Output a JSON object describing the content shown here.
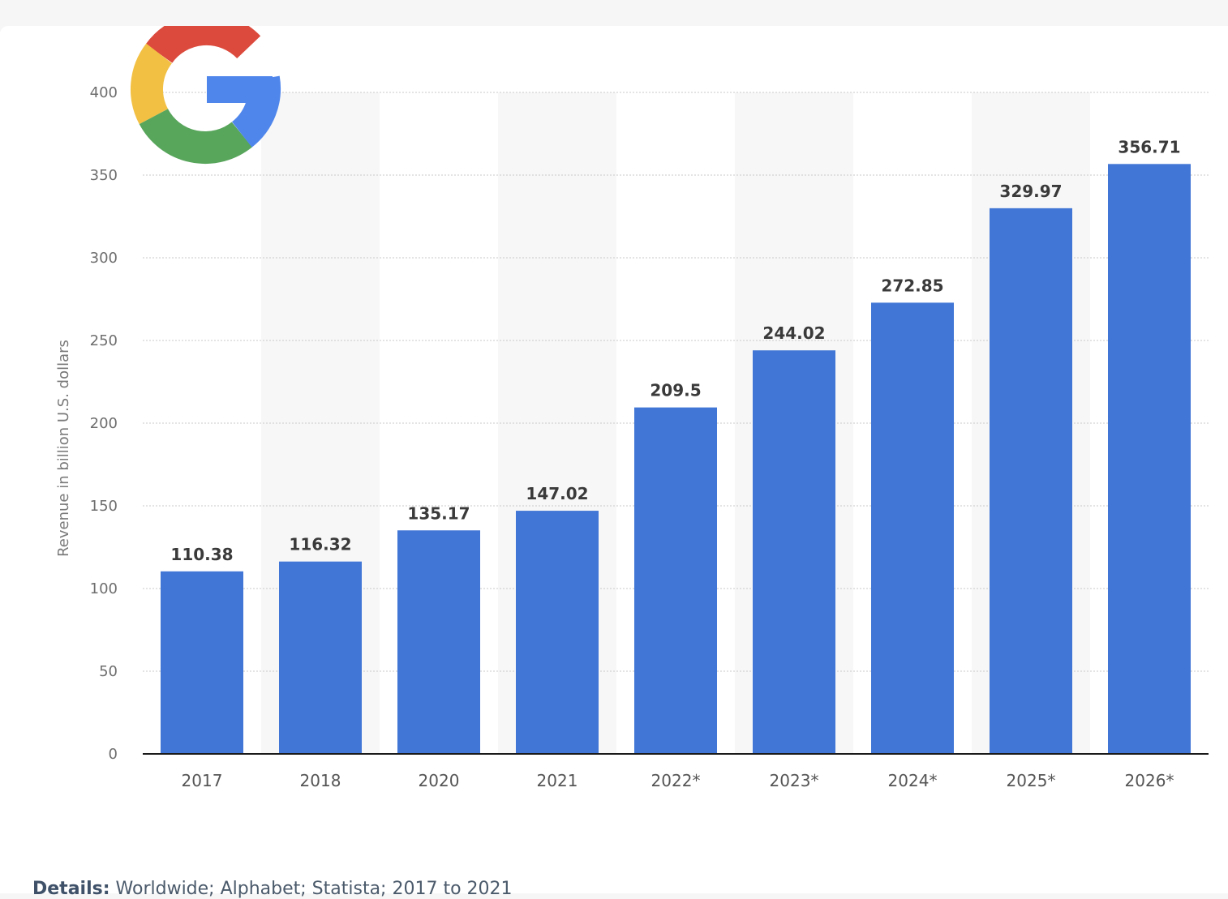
{
  "details": {
    "label": "Details:",
    "text": "Worldwide; Alphabet; Statista; 2017 to 2021"
  },
  "logo": {
    "icon": "google-g-logo-icon",
    "colors": {
      "red": "#db4a3c",
      "yellow": "#f2c043",
      "green": "#58a55c",
      "blue": "#4f86ec"
    }
  },
  "chart_data": {
    "type": "bar",
    "title": "",
    "xlabel": "",
    "ylabel": "Revenue in billion U.S. dollars",
    "categories": [
      "2017",
      "2018",
      "2020",
      "2021",
      "2022*",
      "2023*",
      "2024*",
      "2025*",
      "2026*"
    ],
    "values": [
      110.38,
      116.32,
      135.17,
      147.02,
      209.5,
      244.02,
      272.85,
      329.97,
      356.71
    ],
    "value_labels": [
      "110.38",
      "116.32",
      "135.17",
      "147.02",
      "209.5",
      "244.02",
      "272.85",
      "329.97",
      "356.71"
    ],
    "ylim": [
      0,
      400
    ],
    "yticks": [
      0,
      50,
      100,
      150,
      200,
      250,
      300,
      350,
      400
    ],
    "grid": true,
    "legend": "none",
    "bar_color": "#4176d6"
  }
}
